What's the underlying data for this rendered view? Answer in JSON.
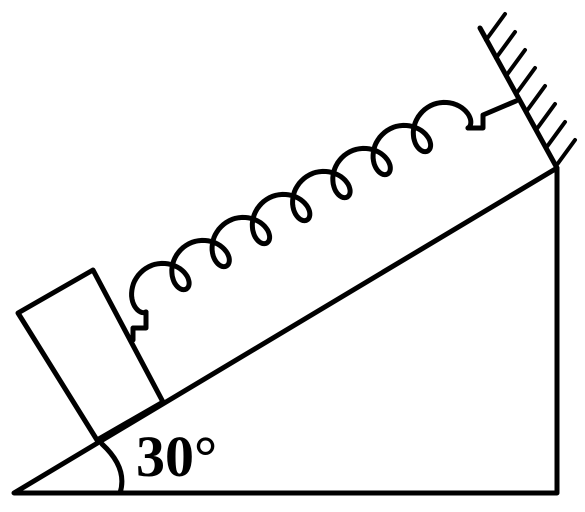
{
  "diagram": {
    "angle_label": "30°",
    "ink_color": "#000000",
    "background_color": "#ffffff"
  }
}
